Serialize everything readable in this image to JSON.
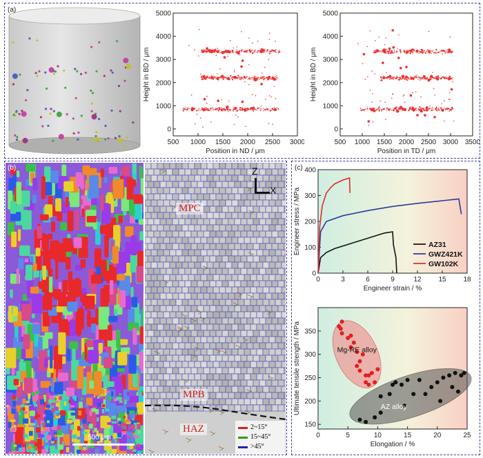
{
  "panel_a": {
    "label": "(a)",
    "chart_nd": {
      "type": "scatter",
      "xlabel": "Position in ND / μm",
      "ylabel": "Height in BD / μm",
      "xlim": [
        500,
        3000
      ],
      "ylim": [
        -300,
        5000
      ],
      "xticks": [
        "500",
        "1000",
        "1500",
        "2000",
        "2500",
        "3000"
      ],
      "yticks": [
        "0",
        "1000",
        "2000",
        "3000",
        "4000",
        "5000"
      ],
      "bands": [
        {
          "y": 850,
          "x0": 700,
          "x1": 2650
        },
        {
          "y": 2200,
          "x0": 1050,
          "x1": 2600
        },
        {
          "y": 3350,
          "x0": 1050,
          "x1": 2650
        }
      ]
    },
    "chart_td": {
      "type": "scatter",
      "xlabel": "Position in TD / μm",
      "ylabel": "Height in BD / μm",
      "xlim": [
        500,
        3500
      ],
      "ylim": [
        -300,
        5000
      ],
      "xticks": [
        "500",
        "1000",
        "1500",
        "2000",
        "2500",
        "3000",
        "3500"
      ],
      "yticks": [
        "0",
        "1000",
        "2000",
        "3000",
        "4000",
        "5000"
      ],
      "bands": [
        {
          "y": 850,
          "x0": 950,
          "x1": 3050
        },
        {
          "y": 2200,
          "x0": 1400,
          "x1": 3050
        },
        {
          "y": 3350,
          "x0": 1250,
          "x1": 3050
        }
      ]
    }
  },
  "panel_b": {
    "label": "(b)",
    "scale_bar": "500 μm",
    "axis_z": "Z",
    "axis_x": "X",
    "regions": [
      "MPC",
      "MPB",
      "HAZ"
    ],
    "legend": [
      {
        "label": "2~15°",
        "color": "#d42020"
      },
      {
        "label": "15~45°",
        "color": "#22a020"
      },
      {
        "label": ">45°",
        "color": "#2020b0"
      }
    ]
  },
  "panel_c": {
    "label": "(c)",
    "stress_strain": {
      "type": "line",
      "xlabel": "Engineer strain / %",
      "ylabel": "Engineer stress / MPa",
      "xlim": [
        0,
        18
      ],
      "ylim": [
        0,
        400
      ],
      "xticks": [
        "0",
        "3",
        "6",
        "9",
        "12",
        "15",
        "18"
      ],
      "yticks": [
        "0",
        "100",
        "200",
        "300",
        "400"
      ],
      "series": [
        {
          "name": "AZ31",
          "color": "#111111",
          "x": [
            0,
            0.3,
            1,
            2,
            4,
            6,
            8,
            9,
            9.1,
            9.4,
            9.5
          ],
          "y": [
            0,
            60,
            80,
            95,
            115,
            135,
            155,
            160,
            110,
            60,
            0
          ]
        },
        {
          "name": "GWZ421K",
          "color": "#2a3a9a",
          "x": [
            0,
            0.3,
            1,
            3,
            6,
            9,
            12,
            15,
            17,
            17.3
          ],
          "y": [
            0,
            160,
            200,
            222,
            242,
            258,
            270,
            280,
            287,
            228
          ]
        },
        {
          "name": "GW102K",
          "color": "#e02a2a",
          "x": [
            0,
            0.2,
            0.5,
            1,
            1.5,
            2,
            3,
            3.8,
            3.85
          ],
          "y": [
            0,
            180,
            260,
            310,
            330,
            345,
            360,
            368,
            310
          ]
        }
      ]
    },
    "uts_elongation": {
      "type": "scatter",
      "xlabel": "Elongation / %",
      "ylabel": "Ultimate tensile strength / MPa",
      "xlim": [
        0,
        25
      ],
      "ylim": [
        140,
        400
      ],
      "xticks": [
        "0",
        "5",
        "10",
        "15",
        "20",
        "25"
      ],
      "yticks": [
        "150",
        "200",
        "250",
        "300",
        "350"
      ],
      "group_labels": [
        "Mg-RE alloy",
        "AZ alloy"
      ],
      "mg_re": [
        [
          3.5,
          360
        ],
        [
          4,
          345
        ],
        [
          4,
          370
        ],
        [
          3.8,
          355
        ],
        [
          5,
          335
        ],
        [
          5.5,
          340
        ],
        [
          6,
          325
        ],
        [
          5.5,
          315
        ],
        [
          6.5,
          305
        ],
        [
          7.5,
          300
        ],
        [
          7,
          285
        ],
        [
          6.5,
          275
        ],
        [
          7,
          265
        ],
        [
          8,
          255
        ],
        [
          8.5,
          255
        ],
        [
          9,
          260
        ],
        [
          10,
          268
        ],
        [
          8,
          240
        ],
        [
          8.5,
          235
        ],
        [
          9.5,
          240
        ]
      ],
      "az": [
        [
          7,
          160
        ],
        [
          8,
          155
        ],
        [
          9.5,
          165
        ],
        [
          10.5,
          175
        ],
        [
          10.5,
          210
        ],
        [
          12,
          215
        ],
        [
          12.5,
          235
        ],
        [
          13,
          240
        ],
        [
          14,
          235
        ],
        [
          15,
          245
        ],
        [
          14.5,
          190
        ],
        [
          16,
          215
        ],
        [
          17,
          245
        ],
        [
          18,
          215
        ],
        [
          19,
          230
        ],
        [
          20,
          240
        ],
        [
          20.5,
          200
        ],
        [
          21,
          250
        ],
        [
          22,
          255
        ],
        [
          22.5,
          230
        ],
        [
          23,
          260
        ],
        [
          23.5,
          220
        ],
        [
          24,
          255
        ],
        [
          24.5,
          260
        ]
      ]
    }
  }
}
